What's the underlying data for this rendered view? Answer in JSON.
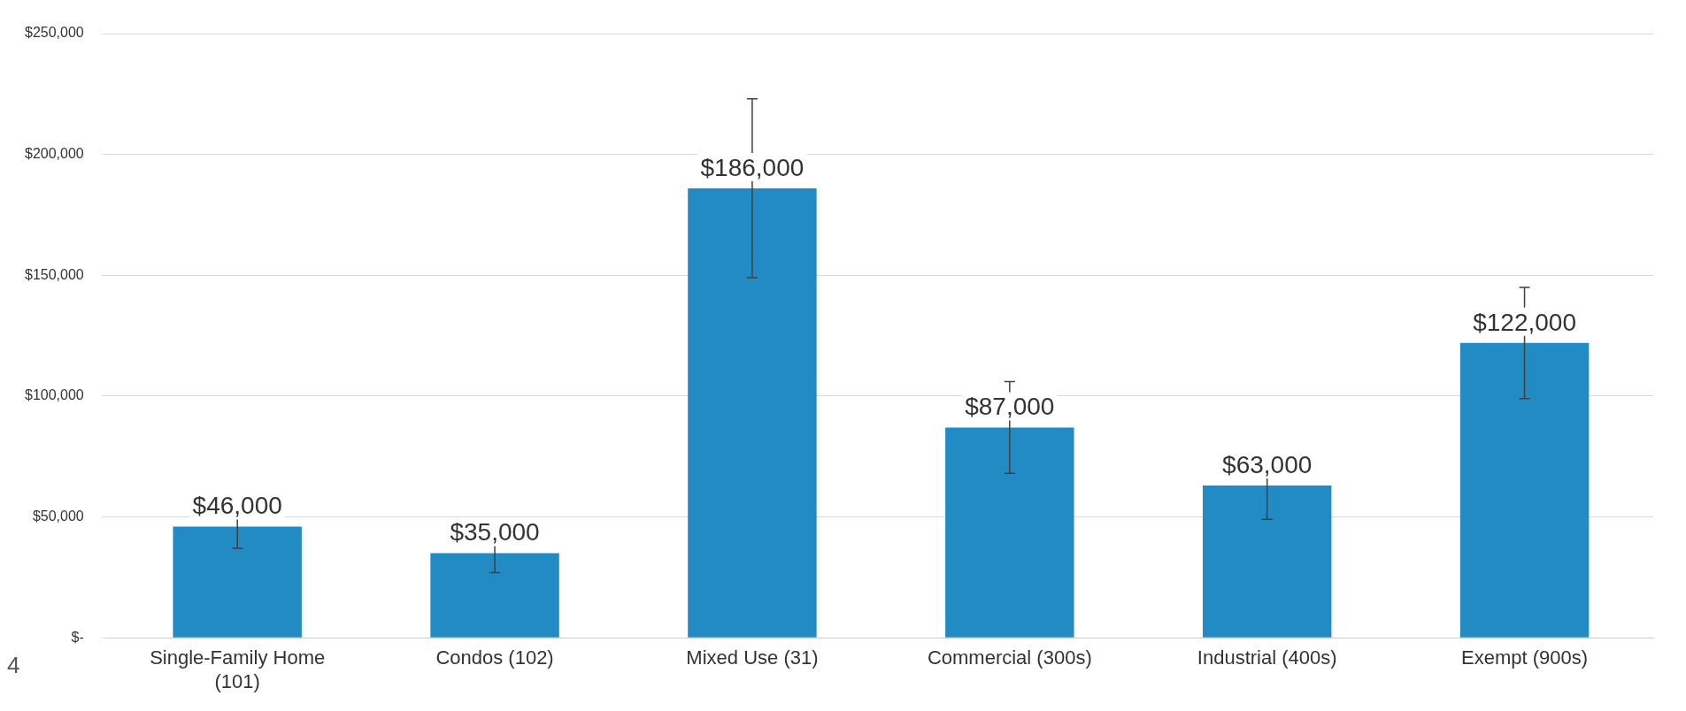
{
  "chart_data": {
    "type": "bar",
    "categories": [
      "Single-Family Home (101)",
      "Condos (102)",
      "Mixed Use (31)",
      "Commercial (300s)",
      "Industrial (400s)",
      "Exempt (900s)"
    ],
    "values": [
      46000,
      35000,
      186000,
      87000,
      63000,
      122000
    ],
    "errors": [
      9000,
      8000,
      37000,
      19000,
      14000,
      23000
    ],
    "value_labels": [
      "$46,000",
      "$35,000",
      "$186,000",
      "$87,000",
      "$63,000",
      "$122,000"
    ],
    "color": "#238bc4",
    "ylim": [
      0,
      250000
    ],
    "yticks": [
      {
        "value": 0,
        "label": "$-"
      },
      {
        "value": 50000,
        "label": "$50,000"
      },
      {
        "value": 100000,
        "label": "$100,000"
      },
      {
        "value": 150000,
        "label": "$150,000"
      },
      {
        "value": 200000,
        "label": "$200,000"
      },
      {
        "value": 250000,
        "label": "$250,000"
      }
    ],
    "grid": "y",
    "legend": false,
    "annotations": [
      "4"
    ]
  }
}
